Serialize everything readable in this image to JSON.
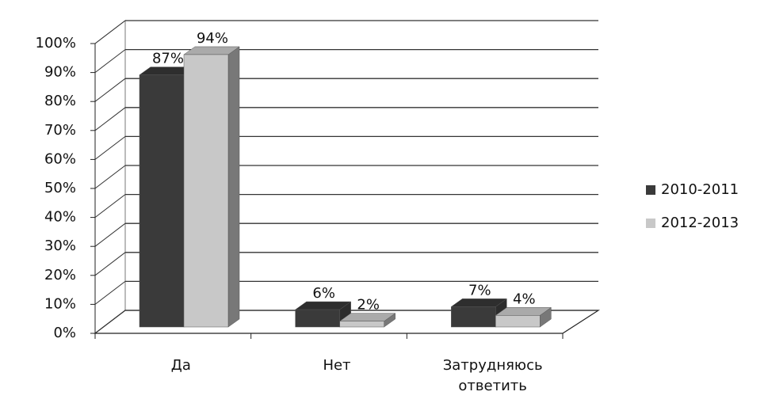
{
  "chart_data": {
    "type": "bar3d",
    "categories": [
      "Да",
      "Нет",
      "Затрудняюсь ответить"
    ],
    "series": [
      {
        "name": "2010-2011",
        "color": "#3a3a3a",
        "values": [
          87,
          6,
          7
        ],
        "value_labels": [
          "87%",
          "6%",
          "7%"
        ]
      },
      {
        "name": "2012-2013",
        "color": "#c8c8c8",
        "values": [
          94,
          2,
          4
        ],
        "value_labels": [
          "94%",
          "2%",
          "4%"
        ]
      }
    ],
    "ylim": [
      0,
      100
    ],
    "yticks": [
      {
        "value": 0,
        "label": "0%"
      },
      {
        "value": 10,
        "label": "10%"
      },
      {
        "value": 20,
        "label": "20%"
      },
      {
        "value": 30,
        "label": "30%"
      },
      {
        "value": 40,
        "label": "40%"
      },
      {
        "value": 50,
        "label": "50%"
      },
      {
        "value": 60,
        "label": "60%"
      },
      {
        "value": 70,
        "label": "70%"
      },
      {
        "value": 80,
        "label": "80%"
      },
      {
        "value": 90,
        "label": "90%"
      },
      {
        "value": 100,
        "label": "100%"
      }
    ],
    "grid": true,
    "legend": "right"
  }
}
